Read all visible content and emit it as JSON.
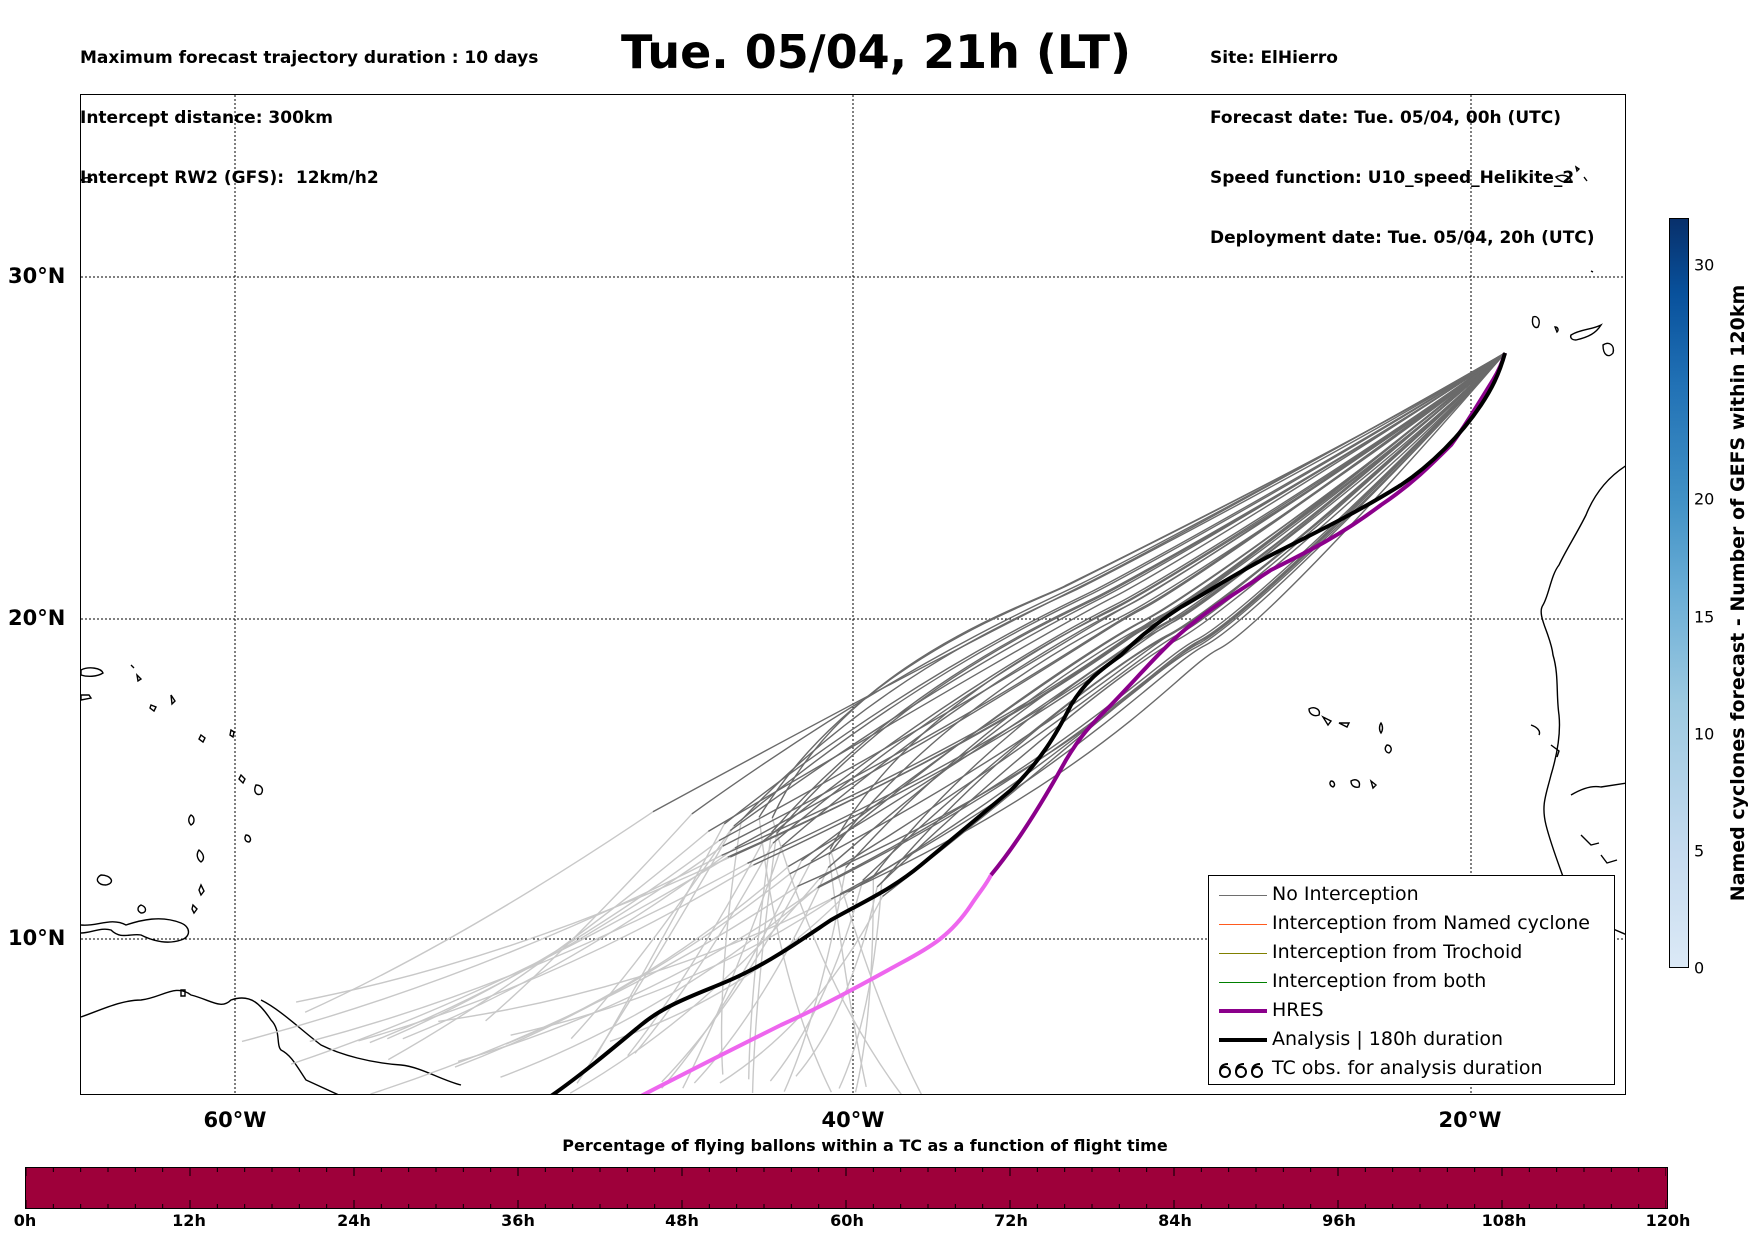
{
  "header": {
    "left": [
      "Maximum forecast trajectory duration : 10 days",
      "Intercept distance: 300km",
      "Intercept RW2 (GFS):  12km/h2"
    ],
    "right": [
      "Site: ElHierro",
      "Forecast date: Tue. 05/04, 00h (UTC)",
      "Speed function: U10_speed_Helikite_2",
      "Deployment date: Tue. 05/04, 20h (UTC)"
    ],
    "title": "Tue. 05/04, 21h (LT)"
  },
  "map": {
    "lat_labels": [
      "30°N",
      "20°N",
      "10°N"
    ],
    "lon_labels": [
      "60°W",
      "40°W",
      "20°W"
    ],
    "extent": {
      "lon_min": -65,
      "lon_max": -15,
      "lat_min": 5.5,
      "lat_max": 35.3
    }
  },
  "legend": {
    "items": [
      {
        "label": "No Interception",
        "color": "#6e6e6e"
      },
      {
        "label": "Interception from Named cyclone",
        "color": "#ff5a1e"
      },
      {
        "label": "Interception from Trochoid",
        "color": "#808000"
      },
      {
        "label": "Interception from both",
        "color": "#008000"
      },
      {
        "label": "HRES",
        "color": "#8b008b"
      },
      {
        "label": "Analysis | 180h duration",
        "color": "#000000"
      },
      {
        "label": "TC obs. for analysis duration",
        "color": "#000000",
        "icon": "cyclone-symbols"
      }
    ]
  },
  "percentage_bar": {
    "title": "Percentage of flying ballons within a TC as a function of flight time",
    "ticks": [
      "0h",
      "12h",
      "24h",
      "36h",
      "48h",
      "60h",
      "72h",
      "84h",
      "96h",
      "108h",
      "120h"
    ],
    "color": "#9e003a"
  },
  "colorbar": {
    "label": "Named cyclones forecast - Number of GEFS within 120km",
    "ticks": [
      "0",
      "5",
      "10",
      "15",
      "20",
      "30"
    ],
    "range": [
      0,
      32
    ]
  }
}
